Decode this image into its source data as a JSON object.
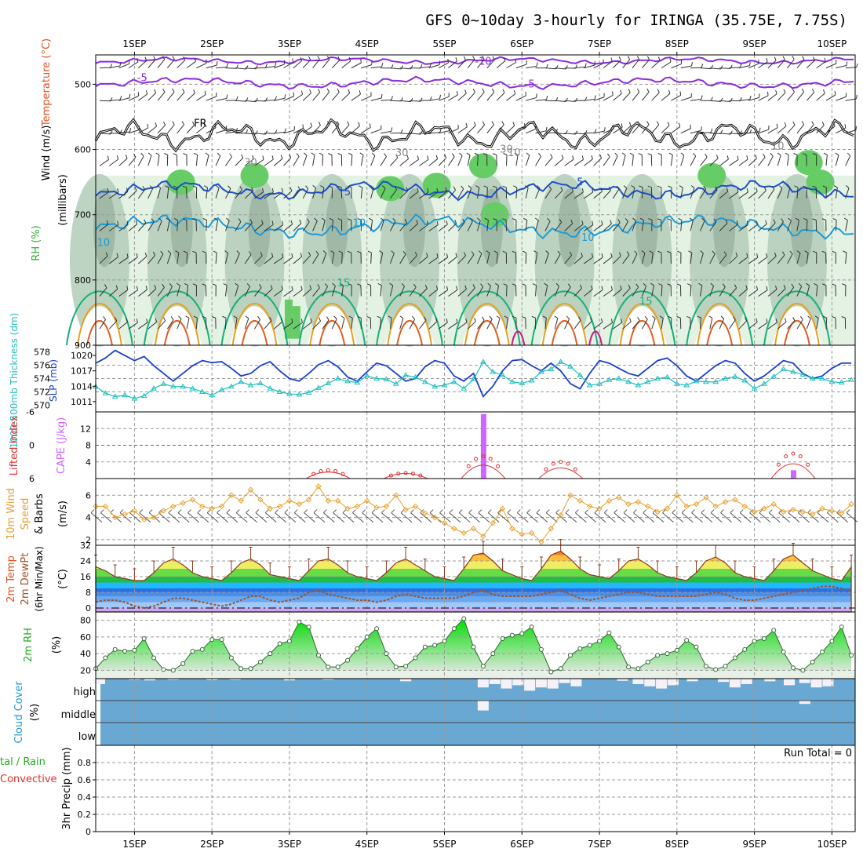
{
  "header": {
    "title": "GFS 0~10day 3-hourly for IRINGA (35.75E, 7.75S)"
  },
  "date_labels": [
    "1SEP",
    "2SEP",
    "3SEP",
    "4SEP",
    "5SEP",
    "6SEP",
    "7SEP",
    "8SEP",
    "9SEP",
    "10SEP"
  ],
  "colors": {
    "wind_line": "#8a2be2",
    "temp_line_neg": "#8a2be2",
    "temp_line_0": "#000000",
    "temp_line_5": "#1e4fc8",
    "temp_line_10": "#1e9ad6",
    "temp_line_15": "#16b07a",
    "temp_line_20": "#e8a020",
    "temp_line_25": "#e06020",
    "rh_light": "#e4f2e4",
    "rh_mid": "#b3ccb8",
    "rh_dark": "#8fa898",
    "rh_green": "#66cc66",
    "slp": "#1a3fd0",
    "thickness": "#1fbfbf",
    "lifted_index": "#e03030",
    "cape": "#cc66ff",
    "wind10": "#e8a030",
    "barb": "#555555",
    "dewpt": "#a0522d",
    "temp_outline": "#8b3a1a",
    "rh2m_fill": "#33cc33",
    "cloud": "#6aa8d4",
    "cloud_bar": "#f4f2f8"
  },
  "panels": {
    "upper_air": {
      "ylabel": "(millibars)",
      "ylabel_parts": {
        "wind": "Wind (m/s)",
        "temp": "Temperature (°C)",
        "rh": "RH (%)"
      },
      "ticks": [
        "500",
        "600",
        "700",
        "800",
        "900"
      ],
      "contour_labels": [
        "-10",
        "-5",
        "-5",
        "5",
        "5",
        "10",
        "10",
        "10",
        "15",
        "15",
        "FR",
        "30",
        "30",
        "30",
        "10",
        "10"
      ]
    },
    "pressure": {
      "ylabel_left": "1000-500mb Thickness (dm)",
      "ylabel_right": "SLP (mb)",
      "left_ticks": [
        "578",
        "576",
        "574",
        "572",
        "570"
      ],
      "right_ticks": [
        "1020",
        "1017",
        "1014",
        "1011"
      ]
    },
    "stability": {
      "ylabel_left": "Lifted Index",
      "ylabel_right": "CAPE (J/kg)",
      "left_ticks": [
        "-6",
        "0",
        "6"
      ],
      "right_ticks": [
        "12",
        "8",
        "4"
      ]
    },
    "wind10m": {
      "ylabel": "10m Wind Speed & Barbs",
      "ylabel_lines": [
        "10m Wind",
        "Speed",
        "& Barbs"
      ],
      "units": "(m/s)",
      "ticks": [
        "6",
        "4",
        "2"
      ]
    },
    "temp2m": {
      "ylabel_lines": [
        "2m Temp",
        "2m DewPt",
        "(6hr Min/Max)"
      ],
      "units": "(°C)",
      "ticks": [
        "32",
        "24",
        "16",
        "8",
        "0"
      ]
    },
    "rh2m": {
      "ylabel": "2m RH",
      "units": "(%)",
      "ticks": [
        "80",
        "60",
        "40",
        "20"
      ]
    },
    "cloud": {
      "ylabel": "Cloud Cover",
      "units": "(%)",
      "levels": [
        "high",
        "middle",
        "low"
      ]
    },
    "precip": {
      "ylabel_lines": [
        "Total / Rain",
        "Convective",
        "3hr Precip (mm)"
      ],
      "ylabel_left_total": "tal / Rain",
      "ylabel_left_conv": "Convective",
      "ylabel_right": "3hr Precip (mm)",
      "ticks": [
        "0.8",
        "0.6",
        "0.4",
        "0.2",
        "0"
      ],
      "run_total": "Run Total = 0"
    }
  },
  "chart_data": [
    {
      "type": "line",
      "panel": "pressure",
      "x_days": [
        0.5,
        0.625,
        0.75,
        0.875,
        1.0,
        1.125,
        1.25,
        1.375,
        1.5,
        1.625,
        1.75,
        1.875,
        2.0,
        2.125,
        2.25,
        2.375,
        2.5,
        2.625,
        2.75,
        2.875,
        3.0,
        3.125,
        3.25,
        3.375,
        3.5,
        3.625,
        3.75,
        3.875,
        4.0,
        4.125,
        4.25,
        4.375,
        4.5,
        4.625,
        4.75,
        4.875,
        5.0,
        5.125,
        5.25,
        5.375,
        5.5,
        5.625,
        5.75,
        5.875,
        6.0,
        6.125,
        6.25,
        6.375,
        6.5,
        6.625,
        6.75,
        6.875,
        7.0,
        7.125,
        7.25,
        7.375,
        7.5,
        7.625,
        7.75,
        7.875,
        8.0,
        8.125,
        8.25,
        8.375,
        8.5,
        8.625,
        8.75,
        8.875,
        9.0,
        9.125,
        9.25,
        9.375,
        9.5,
        9.625,
        9.75,
        9.875,
        10.0,
        10.125,
        10.25
      ],
      "series": [
        {
          "name": "SLP (mb)",
          "values": [
            1018.5,
            1019.5,
            1021.0,
            1020.0,
            1019.0,
            1019.8,
            1018.0,
            1016.5,
            1015.0,
            1016.5,
            1018.0,
            1019.0,
            1018.6,
            1018.8,
            1017.5,
            1016.0,
            1016.5,
            1018.0,
            1018.8,
            1017.0,
            1015.5,
            1015.0,
            1016.5,
            1018.2,
            1019.0,
            1017.8,
            1015.8,
            1015.0,
            1016.8,
            1018.5,
            1018.0,
            1016.5,
            1015.0,
            1015.5,
            1017.8,
            1019.0,
            1018.5,
            1016.0,
            1015.0,
            1016.5,
            1012.0,
            1014.0,
            1017.0,
            1019.0,
            1019.2,
            1018.0,
            1017.0,
            1018.5,
            1017.0,
            1014.5,
            1013.5,
            1016.5,
            1019.0,
            1018.5,
            1017.5,
            1016.5,
            1016.0,
            1017.5,
            1019.0,
            1019.5,
            1018.0,
            1016.0,
            1015.0,
            1016.5,
            1018.0,
            1019.0,
            1018.5,
            1016.5,
            1015.0,
            1016.0,
            1017.5,
            1019.0,
            1018.5,
            1016.5,
            1015.5,
            1016.0,
            1017.5,
            1018.5,
            1018.5
          ]
        },
        {
          "name": "1000-500mb Thickness (dm)",
          "values": [
            572.8,
            571.8,
            571.3,
            571.5,
            571.0,
            571.4,
            572.5,
            573.2,
            572.8,
            572.8,
            572.5,
            572.0,
            571.5,
            572.3,
            572.8,
            573.5,
            573.0,
            573.3,
            572.5,
            572.0,
            571.7,
            571.6,
            571.9,
            572.6,
            573.3,
            574.0,
            573.6,
            573.4,
            574.4,
            574.0,
            573.9,
            573.2,
            574.5,
            574.2,
            573.5,
            572.8,
            573.0,
            573.5,
            572.5,
            573.9,
            576.5,
            575.0,
            574.5,
            573.5,
            573.3,
            573.7,
            575.0,
            575.4,
            576.5,
            575.8,
            574.5,
            573.0,
            573.2,
            573.8,
            574.0,
            573.5,
            573.0,
            573.5,
            574.0,
            574.2,
            573.2,
            573.0,
            573.6,
            573.5,
            573.5,
            574.0,
            574.3,
            573.7,
            572.5,
            573.2,
            574.3,
            575.4,
            575.0,
            574.6,
            574.0,
            574.0,
            573.5,
            573.4,
            573.8
          ]
        }
      ],
      "ylim_left": [
        569,
        579
      ],
      "ylim_right": [
        1009,
        1022
      ]
    },
    {
      "type": "bar",
      "panel": "stability",
      "series": [
        {
          "name": "CAPE (J/kg)",
          "x_days": [
            5.5,
            9.5
          ],
          "values": [
            15.5,
            2.0
          ]
        },
        {
          "name": "Lifted Index",
          "x_days": [
            3.5,
            4.5,
            5.5,
            6.5,
            9.5
          ],
          "values": [
            4.5,
            5.0,
            2.0,
            3.0,
            1.5
          ]
        }
      ],
      "ylim_right": [
        0,
        16
      ],
      "ylim_left": [
        -6,
        6
      ]
    },
    {
      "type": "line",
      "panel": "wind10m",
      "x_days": [
        0.5,
        0.625,
        0.75,
        0.875,
        1.0,
        1.125,
        1.25,
        1.375,
        1.5,
        1.625,
        1.75,
        1.875,
        2.0,
        2.125,
        2.25,
        2.375,
        2.5,
        2.625,
        2.75,
        2.875,
        3.0,
        3.125,
        3.25,
        3.375,
        3.5,
        3.625,
        3.75,
        3.875,
        4.0,
        4.125,
        4.25,
        4.375,
        4.5,
        4.625,
        4.75,
        4.875,
        5.0,
        5.125,
        5.25,
        5.375,
        5.5,
        5.625,
        5.75,
        5.875,
        6.0,
        6.125,
        6.25,
        6.375,
        6.5,
        6.625,
        6.75,
        6.875,
        7.0,
        7.125,
        7.25,
        7.375,
        7.5,
        7.625,
        7.75,
        7.875,
        8.0,
        8.125,
        8.25,
        8.375,
        8.5,
        8.625,
        8.75,
        8.875,
        9.0,
        9.125,
        9.25,
        9.375,
        9.5,
        9.625,
        9.75,
        9.875,
        10.0,
        10.125,
        10.25
      ],
      "series": [
        {
          "name": "10m Wind Speed",
          "values": [
            5.0,
            5.0,
            4.0,
            4.3,
            4.6,
            3.8,
            4.0,
            4.6,
            5.0,
            5.3,
            5.6,
            5.0,
            4.8,
            5.0,
            6.0,
            5.5,
            6.5,
            5.6,
            4.8,
            5.0,
            5.5,
            5.2,
            5.6,
            6.8,
            5.5,
            5.5,
            4.8,
            5.0,
            5.5,
            4.9,
            5.0,
            6.0,
            4.7,
            5.0,
            4.4,
            4.0,
            3.5,
            3.0,
            2.6,
            3.0,
            2.3,
            3.5,
            4.8,
            3.0,
            2.5,
            2.6,
            1.8,
            3.0,
            4.2,
            6.0,
            5.5,
            5.0,
            4.8,
            5.5,
            5.8,
            5.2,
            5.4,
            5.0,
            4.5,
            4.8,
            6.0,
            5.0,
            5.2,
            5.8,
            5.0,
            5.4,
            5.6,
            5.0,
            4.5,
            4.8,
            5.2,
            4.5,
            4.7,
            4.5,
            4.3,
            4.8,
            4.6,
            4.4,
            5.2
          ]
        }
      ],
      "ylim": [
        1.5,
        7.5
      ]
    },
    {
      "type": "area",
      "panel": "temp2m",
      "x_days": [
        0.5,
        0.625,
        0.75,
        0.875,
        1.0,
        1.125,
        1.25,
        1.375,
        1.5,
        1.625,
        1.75,
        1.875,
        2.0,
        2.125,
        2.25,
        2.375,
        2.5,
        2.625,
        2.75,
        2.875,
        3.0,
        3.125,
        3.25,
        3.375,
        3.5,
        3.625,
        3.75,
        3.875,
        4.0,
        4.125,
        4.25,
        4.375,
        4.5,
        4.625,
        4.75,
        4.875,
        5.0,
        5.125,
        5.25,
        5.375,
        5.5,
        5.625,
        5.75,
        5.875,
        6.0,
        6.125,
        6.25,
        6.375,
        6.5,
        6.625,
        6.75,
        6.875,
        7.0,
        7.125,
        7.25,
        7.375,
        7.5,
        7.625,
        7.75,
        7.875,
        8.0,
        8.125,
        8.25,
        8.375,
        8.5,
        8.625,
        8.75,
        8.875,
        9.0,
        9.125,
        9.25,
        9.375,
        9.5,
        9.625,
        9.75,
        9.875,
        10.0,
        10.125,
        10.25
      ],
      "series": [
        {
          "name": "2m Temp",
          "values": [
            21,
            19,
            16,
            15,
            14,
            14,
            18,
            23,
            25,
            22,
            18,
            16,
            15,
            14,
            18,
            23,
            25,
            22,
            17,
            16,
            15,
            14,
            19,
            24,
            25,
            22,
            18,
            16,
            15,
            14,
            18,
            23,
            25,
            22,
            19,
            16,
            15,
            14,
            20,
            27,
            28,
            24,
            19,
            17,
            15,
            14,
            20,
            27,
            29,
            25,
            20,
            17,
            16,
            15,
            19,
            24,
            25,
            22,
            18,
            16,
            15,
            14,
            18,
            24,
            26,
            23,
            18,
            16,
            15,
            14,
            19,
            25,
            27,
            23,
            19,
            17,
            15,
            14,
            21
          ]
        },
        {
          "name": "2m DewPt",
          "values": [
            3,
            4,
            4,
            3,
            1,
            0,
            1,
            3,
            5,
            5,
            4,
            3,
            2,
            1,
            2,
            4,
            6,
            6,
            4,
            3,
            4,
            5,
            8,
            9,
            7,
            6,
            5,
            4,
            4,
            3,
            4,
            6,
            7,
            6,
            5,
            5,
            5,
            5,
            6,
            8,
            9,
            7,
            6,
            6,
            6,
            6,
            7,
            8,
            9,
            7,
            5,
            4,
            5,
            6,
            7,
            8,
            8,
            7,
            6,
            6,
            6,
            6,
            6,
            7,
            8,
            7,
            5,
            4,
            4,
            5,
            6,
            7,
            8,
            9,
            10,
            11,
            11,
            10,
            9
          ]
        }
      ],
      "ylim": [
        -2,
        32
      ]
    },
    {
      "type": "area",
      "panel": "rh2m",
      "x_days": [
        0.5,
        0.625,
        0.75,
        0.875,
        1.0,
        1.125,
        1.25,
        1.375,
        1.5,
        1.625,
        1.75,
        1.875,
        2.0,
        2.125,
        2.25,
        2.375,
        2.5,
        2.625,
        2.75,
        2.875,
        3.0,
        3.125,
        3.25,
        3.375,
        3.5,
        3.625,
        3.75,
        3.875,
        4.0,
        4.125,
        4.25,
        4.375,
        4.5,
        4.625,
        4.75,
        4.875,
        5.0,
        5.125,
        5.25,
        5.375,
        5.5,
        5.625,
        5.75,
        5.875,
        6.0,
        6.125,
        6.25,
        6.375,
        6.5,
        6.625,
        6.75,
        6.875,
        7.0,
        7.125,
        7.25,
        7.375,
        7.5,
        7.625,
        7.75,
        7.875,
        8.0,
        8.125,
        8.25,
        8.375,
        8.5,
        8.625,
        8.75,
        8.875,
        9.0,
        9.125,
        9.25,
        9.375,
        9.5,
        9.625,
        9.75,
        9.875,
        10.0,
        10.125,
        10.25
      ],
      "series": [
        {
          "name": "2m RH",
          "values": [
            22,
            35,
            45,
            43,
            44,
            58,
            35,
            21,
            20,
            28,
            43,
            45,
            57,
            57,
            35,
            22,
            22,
            30,
            40,
            52,
            55,
            78,
            72,
            38,
            24,
            24,
            32,
            46,
            60,
            70,
            40,
            24,
            25,
            35,
            48,
            50,
            55,
            70,
            82,
            48,
            25,
            40,
            58,
            62,
            64,
            72,
            45,
            18,
            22,
            38,
            46,
            50,
            55,
            65,
            48,
            24,
            22,
            30,
            38,
            40,
            44,
            56,
            48,
            25,
            21,
            25,
            35,
            45,
            55,
            58,
            68,
            42,
            23,
            20,
            30,
            42,
            55,
            72,
            38
          ]
        }
      ],
      "ylim": [
        10,
        90
      ]
    },
    {
      "type": "bar",
      "panel": "cloud",
      "levels": [
        "high",
        "middle",
        "low"
      ],
      "series": [
        {
          "name": "high",
          "x_days": [
            0.55,
            1.0,
            1.2,
            1.5,
            2.0,
            2.3,
            3.0,
            3.5,
            4.5,
            5.5,
            5.65,
            5.8,
            5.95,
            6.1,
            6.25,
            6.4,
            6.55,
            6.7,
            7.3,
            7.5,
            7.65,
            7.8,
            7.95,
            8.2,
            8.6,
            8.75,
            8.9,
            9.2,
            9.45,
            9.65,
            9.8,
            9.95
          ],
          "values": [
            25,
            5,
            8,
            5,
            6,
            5,
            8,
            5,
            12,
            40,
            25,
            45,
            30,
            55,
            40,
            45,
            20,
            35,
            10,
            25,
            35,
            45,
            30,
            12,
            15,
            40,
            25,
            12,
            30,
            20,
            40,
            35
          ]
        },
        {
          "name": "middle",
          "x_days": [
            5.5,
            9.65
          ],
          "values": [
            45,
            15
          ]
        }
      ]
    },
    {
      "type": "bar",
      "panel": "precip",
      "series": [
        {
          "name": "Total / Rain",
          "values": []
        },
        {
          "name": "Convective",
          "values": []
        }
      ],
      "ylim": [
        0,
        1.0
      ]
    }
  ]
}
